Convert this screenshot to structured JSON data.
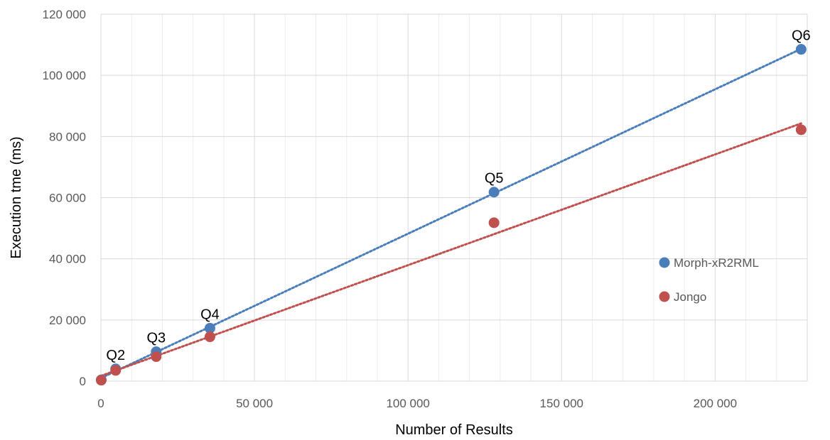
{
  "chart_data": {
    "type": "scatter",
    "title": "",
    "xlabel": "Number of Results",
    "ylabel": "Execution tme (ms)",
    "xlim": [
      0,
      230000
    ],
    "ylim": [
      0,
      120000
    ],
    "x_ticks": [
      0,
      50000,
      100000,
      150000,
      200000
    ],
    "x_tick_labels": [
      "0",
      "50 000",
      "100 000",
      "150 000",
      "200 000"
    ],
    "y_ticks": [
      0,
      20000,
      40000,
      60000,
      80000,
      100000,
      120000
    ],
    "y_tick_labels": [
      "0",
      "20 000",
      "40 000",
      "60 000",
      "80 000",
      "100 000",
      "120 000"
    ],
    "x_minor_step": 10000,
    "grid": true,
    "legend_position": "right",
    "series": [
      {
        "name": "Morph-xR2RML",
        "color": "#4a7ebb",
        "trendline": "linear",
        "points": [
          {
            "x": 100,
            "y": 400,
            "label": ""
          },
          {
            "x": 4800,
            "y": 4000,
            "label": "Q2"
          },
          {
            "x": 18000,
            "y": 9600,
            "label": "Q3"
          },
          {
            "x": 35500,
            "y": 17300,
            "label": "Q4"
          },
          {
            "x": 128000,
            "y": 61800,
            "label": "Q5"
          },
          {
            "x": 228000,
            "y": 108500,
            "label": "Q6"
          }
        ]
      },
      {
        "name": "Jongo",
        "color": "#c0504d",
        "trendline": "linear",
        "points": [
          {
            "x": 100,
            "y": 300,
            "label": ""
          },
          {
            "x": 4800,
            "y": 3500,
            "label": ""
          },
          {
            "x": 18000,
            "y": 8000,
            "label": ""
          },
          {
            "x": 35500,
            "y": 14500,
            "label": ""
          },
          {
            "x": 128000,
            "y": 51800,
            "label": ""
          },
          {
            "x": 228000,
            "y": 82200,
            "label": ""
          }
        ]
      }
    ]
  }
}
